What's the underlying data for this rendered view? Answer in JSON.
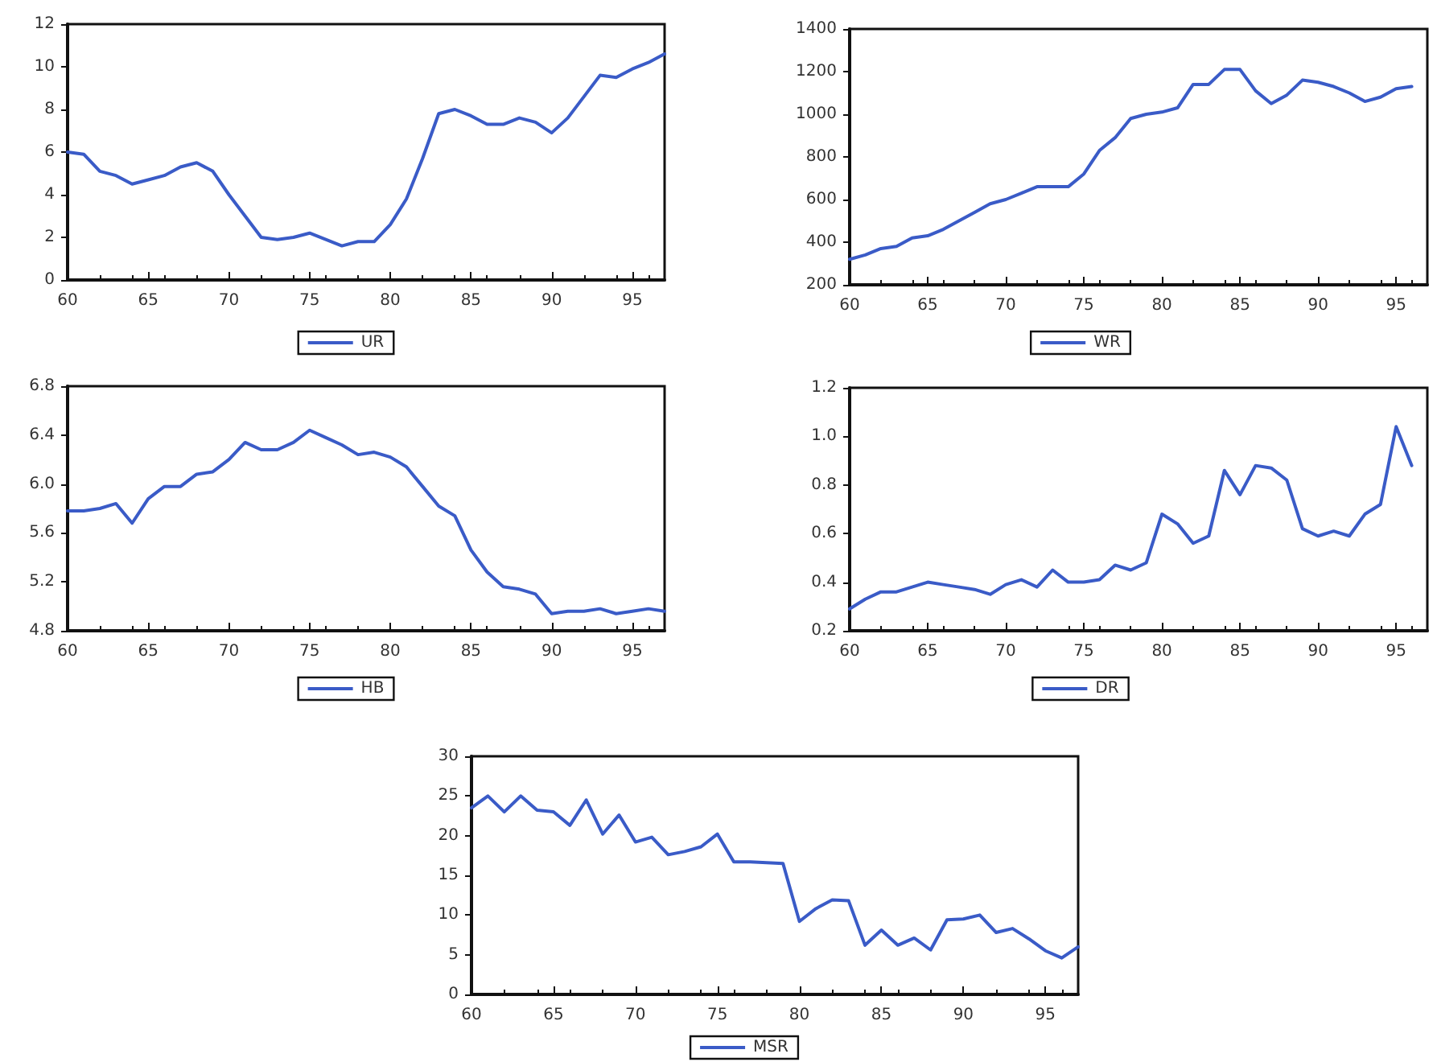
{
  "chart_data": [
    {
      "type": "line",
      "x": [
        60,
        61,
        62,
        63,
        64,
        65,
        66,
        67,
        68,
        69,
        70,
        71,
        72,
        73,
        74,
        75,
        76,
        77,
        78,
        79,
        80,
        81,
        82,
        83,
        84,
        85,
        86,
        87,
        88,
        89,
        90,
        91,
        92,
        93,
        94,
        95,
        96,
        97
      ],
      "series": [
        {
          "name": "UR",
          "color": "#3a5bc7",
          "values": [
            6.0,
            5.9,
            5.1,
            4.9,
            4.5,
            4.7,
            4.9,
            5.3,
            5.5,
            5.1,
            4.0,
            3.0,
            2.0,
            1.9,
            2.0,
            2.2,
            1.9,
            1.6,
            1.8,
            1.8,
            2.6,
            3.8,
            5.7,
            7.8,
            8.0,
            7.7,
            7.3,
            7.3,
            7.6,
            7.4,
            6.9,
            7.6,
            8.6,
            9.6,
            9.5,
            9.9,
            10.2,
            10.6
          ]
        }
      ],
      "xlim": [
        60,
        97
      ],
      "xticks": [
        60,
        65,
        70,
        75,
        80,
        85,
        90,
        95
      ],
      "ylim": [
        0,
        12
      ],
      "yticks": [
        0,
        2,
        4,
        6,
        8,
        10,
        12
      ],
      "legend": "bottom",
      "marker": "none",
      "line_style": "solid"
    },
    {
      "type": "line",
      "x": [
        60,
        61,
        62,
        63,
        64,
        65,
        66,
        67,
        68,
        69,
        70,
        71,
        72,
        73,
        74,
        75,
        76,
        77,
        78,
        79,
        80,
        81,
        82,
        83,
        84,
        85,
        86,
        87,
        88,
        89,
        90,
        91,
        92,
        93,
        94,
        95,
        96
      ],
      "series": [
        {
          "name": "WR",
          "color": "#3a5bc7",
          "values": [
            320,
            340,
            370,
            380,
            420,
            430,
            460,
            500,
            540,
            580,
            600,
            630,
            660,
            660,
            660,
            720,
            830,
            890,
            980,
            1000,
            1010,
            1030,
            1140,
            1140,
            1210,
            1210,
            1110,
            1050,
            1090,
            1160,
            1150,
            1130,
            1100,
            1060,
            1080,
            1120,
            1130
          ]
        }
      ],
      "xlim": [
        60,
        97
      ],
      "xticks": [
        60,
        65,
        70,
        75,
        80,
        85,
        90,
        95
      ],
      "ylim": [
        200,
        1400
      ],
      "yticks": [
        200,
        400,
        600,
        800,
        1000,
        1200,
        1400
      ],
      "legend": "bottom",
      "marker": "none",
      "line_style": "solid"
    },
    {
      "type": "line",
      "x": [
        60,
        61,
        62,
        63,
        64,
        65,
        66,
        67,
        68,
        69,
        70,
        71,
        72,
        73,
        74,
        75,
        76,
        77,
        78,
        79,
        80,
        81,
        82,
        83,
        84,
        85,
        86,
        87,
        88,
        89,
        90,
        91,
        92,
        93,
        94,
        95,
        96,
        97
      ],
      "series": [
        {
          "name": "HB",
          "color": "#3a5bc7",
          "values": [
            5.78,
            5.78,
            5.8,
            5.84,
            5.68,
            5.88,
            5.98,
            5.98,
            6.08,
            6.1,
            6.2,
            6.34,
            6.28,
            6.28,
            6.34,
            6.44,
            6.38,
            6.32,
            6.24,
            6.26,
            6.22,
            6.14,
            5.98,
            5.82,
            5.74,
            5.46,
            5.28,
            5.16,
            5.14,
            5.1,
            4.94,
            4.96,
            4.96,
            4.98,
            4.94,
            4.96,
            4.98,
            4.96
          ]
        }
      ],
      "xlim": [
        60,
        97
      ],
      "xticks": [
        60,
        65,
        70,
        75,
        80,
        85,
        90,
        95
      ],
      "ylim": [
        4.8,
        6.8
      ],
      "yticks": [
        {
          "value": 4.8,
          "label": "4.8"
        },
        {
          "value": 5.2,
          "label": "5.2"
        },
        {
          "value": 5.6,
          "label": "5.6"
        },
        {
          "value": 6.0,
          "label": "6.0"
        },
        {
          "value": 6.4,
          "label": "6.4"
        },
        {
          "value": 6.8,
          "label": "6.8"
        }
      ],
      "legend": "bottom",
      "marker": "none",
      "line_style": "solid"
    },
    {
      "type": "line",
      "x": [
        60,
        61,
        62,
        63,
        64,
        65,
        66,
        67,
        68,
        69,
        70,
        71,
        72,
        73,
        74,
        75,
        76,
        77,
        78,
        79,
        80,
        81,
        82,
        83,
        84,
        85,
        86,
        87,
        88,
        89,
        90,
        91,
        92,
        93,
        94,
        95,
        96
      ],
      "series": [
        {
          "name": "DR",
          "color": "#3a5bc7",
          "values": [
            0.29,
            0.33,
            0.36,
            0.36,
            0.38,
            0.4,
            0.39,
            0.38,
            0.37,
            0.35,
            0.39,
            0.41,
            0.38,
            0.45,
            0.4,
            0.4,
            0.41,
            0.47,
            0.45,
            0.48,
            0.68,
            0.64,
            0.56,
            0.59,
            0.86,
            0.76,
            0.88,
            0.87,
            0.82,
            0.62,
            0.59,
            0.61,
            0.59,
            0.68,
            0.72,
            1.04,
            0.88
          ]
        }
      ],
      "xlim": [
        60,
        97
      ],
      "xticks": [
        60,
        65,
        70,
        75,
        80,
        85,
        90,
        95
      ],
      "ylim": [
        0.2,
        1.2
      ],
      "yticks": [
        {
          "value": 0.2,
          "label": "0.2"
        },
        {
          "value": 0.4,
          "label": "0.4"
        },
        {
          "value": 0.6,
          "label": "0.6"
        },
        {
          "value": 0.8,
          "label": "0.8"
        },
        {
          "value": 1.0,
          "label": "1.0"
        },
        {
          "value": 1.2,
          "label": "1.2"
        }
      ],
      "legend": "bottom",
      "marker": "none",
      "line_style": "solid"
    },
    {
      "type": "line",
      "x": [
        60,
        61,
        62,
        63,
        64,
        65,
        66,
        67,
        68,
        69,
        70,
        71,
        72,
        73,
        74,
        75,
        76,
        77,
        78,
        79,
        80,
        81,
        82,
        83,
        84,
        85,
        86,
        87,
        88,
        89,
        90,
        91,
        92,
        93,
        94,
        95,
        96,
        97
      ],
      "series": [
        {
          "name": "MSR",
          "color": "#3a5bc7",
          "values": [
            23.5,
            25,
            23,
            25,
            23.2,
            23,
            21.3,
            24.5,
            20.2,
            22.6,
            19.2,
            19.8,
            17.6,
            18,
            18.6,
            20.2,
            16.7,
            16.7,
            16.6,
            16.5,
            9.2,
            10.8,
            11.9,
            11.8,
            6.2,
            8.1,
            6.2,
            7.1,
            5.6,
            9.4,
            9.5,
            10,
            7.8,
            8.3,
            7,
            5.5,
            4.6,
            6
          ]
        }
      ],
      "xlim": [
        60,
        97
      ],
      "xticks": [
        60,
        65,
        70,
        75,
        80,
        85,
        90,
        95
      ],
      "ylim": [
        0,
        30
      ],
      "yticks": [
        0,
        5,
        10,
        15,
        20,
        25,
        30
      ],
      "legend": "bottom",
      "marker": "none",
      "line_style": "solid"
    }
  ]
}
